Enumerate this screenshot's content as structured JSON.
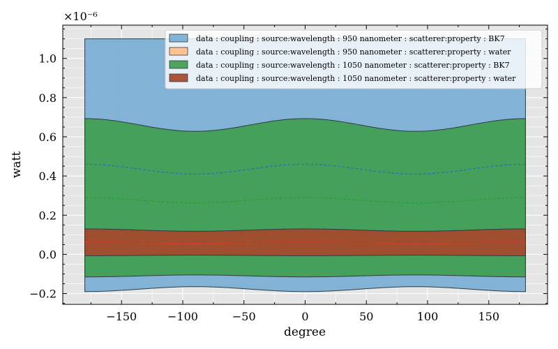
{
  "chart_data": {
    "type": "area",
    "xlabel": "degree",
    "ylabel": "watt",
    "scale_label": "×10⁻⁶",
    "xlim": [
      -198,
      198
    ],
    "ylim": [
      -0.255,
      1.17
    ],
    "xticks": [
      -150,
      -100,
      -50,
      0,
      50,
      100,
      150
    ],
    "yticks": [
      -0.2,
      0.0,
      0.2,
      0.4,
      0.6,
      0.8,
      1.0
    ],
    "grid": true,
    "legend_position": "top-right",
    "x_range": [
      -180,
      180
    ],
    "series": [
      {
        "name": "data : coupling : source:wavelength : 950 nanometer : scatterer:property : BK7",
        "color": "#1f77b4",
        "fill_color": "#7aaed4",
        "mean": {
          "at_0": 0.46,
          "at_90": 0.41
        },
        "upper": {
          "at_0": 1.1,
          "at_90": 1.1
        },
        "lower": {
          "at_0": -0.19,
          "at_90": -0.165
        }
      },
      {
        "name": "data : coupling : source:wavelength : 950 nanometer : scatterer:property : water",
        "color": "#ff7f0e",
        "fill_color": "#ffbf86",
        "mean": {
          "at_0": 0.063,
          "at_90": 0.056
        },
        "upper": {
          "at_0": 0.12,
          "at_90": 0.112
        },
        "lower": {
          "at_0": -0.006,
          "at_90": 0.0
        }
      },
      {
        "name": "data : coupling : source:wavelength : 1050 nanometer : scatterer:property : BK7",
        "color": "#2ca02c",
        "fill_color": "#3f9e4f",
        "mean": {
          "at_0": 0.29,
          "at_90": 0.263
        },
        "upper": {
          "at_0": 0.693,
          "at_90": 0.628
        },
        "lower": {
          "at_0": -0.115,
          "at_90": -0.105
        }
      },
      {
        "name": "data : coupling : source:wavelength : 1050 nanometer : scatterer:property : water",
        "color": "#d62728",
        "fill_color": "#a6482c",
        "mean": {
          "at_0": 0.063,
          "at_90": 0.057
        },
        "upper": {
          "at_0": 0.13,
          "at_90": 0.118
        },
        "lower": {
          "at_0": -0.007,
          "at_90": -0.004
        }
      }
    ]
  }
}
